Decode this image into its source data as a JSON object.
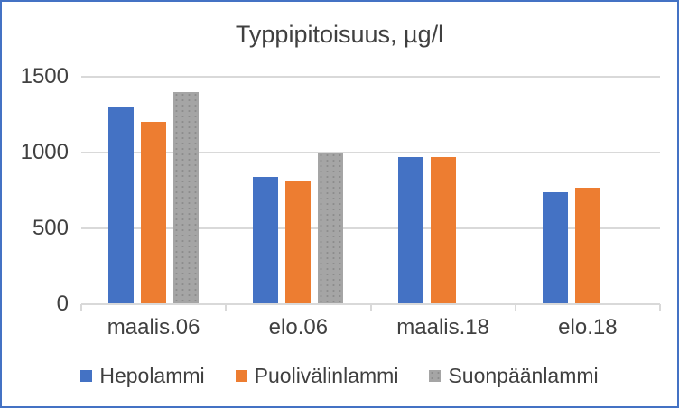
{
  "window": {
    "background": "#FFFFFF",
    "border_color": "#4472C4"
  },
  "colors": {
    "border": "#4472C4",
    "gridline": "#D9D9D9",
    "text": "#404040"
  },
  "chart_data": {
    "type": "bar",
    "title": "Typpipitoisuus, µg/l",
    "categories": [
      "maalis.06",
      "elo.06",
      "maalis.18",
      "elo.18"
    ],
    "series": [
      {
        "name": "Hepolammi",
        "color": "#4472C4",
        "values": [
          1300,
          840,
          970,
          740
        ]
      },
      {
        "name": "Puolivälinlammi",
        "color": "#ED7D31",
        "values": [
          1200,
          810,
          970,
          770
        ]
      },
      {
        "name": "Suonpäänlammi",
        "color": "#A5A5A5",
        "values": [
          1400,
          1000,
          null,
          null
        ]
      }
    ],
    "xlabel": "",
    "ylabel": "",
    "ylim": [
      0,
      1500
    ],
    "yticks": [
      0,
      500,
      1000,
      1500
    ],
    "grid": true,
    "legend_position": "bottom"
  }
}
